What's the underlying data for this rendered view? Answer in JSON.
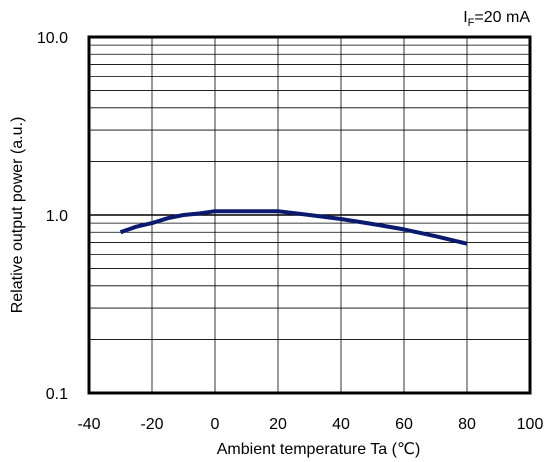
{
  "chart_data": {
    "type": "line",
    "xlabel": "Ambient temperature Ta (℃)",
    "ylabel": "Relative output power (a.u.)",
    "condition": {
      "symbol": "I",
      "subscript": "F",
      "value": "=20 mA"
    },
    "x_ticks": [
      -40,
      -20,
      0,
      20,
      40,
      60,
      80,
      100
    ],
    "y_ticks": [
      "10.0",
      "1.0",
      "0.1"
    ],
    "xlim": [
      -40,
      100
    ],
    "ylim": [
      0.1,
      10
    ],
    "yscale": "log",
    "grid": true,
    "line_color": "#0a1a6e",
    "series": [
      {
        "x": [
          -30,
          -25,
          -20,
          -15,
          -10,
          -5,
          0,
          10,
          20,
          30,
          40,
          50,
          60,
          70,
          80
        ],
        "values": [
          0.8,
          0.86,
          0.9,
          0.96,
          1.0,
          1.02,
          1.05,
          1.05,
          1.05,
          1.0,
          0.95,
          0.89,
          0.83,
          0.76,
          0.69
        ]
      }
    ]
  }
}
